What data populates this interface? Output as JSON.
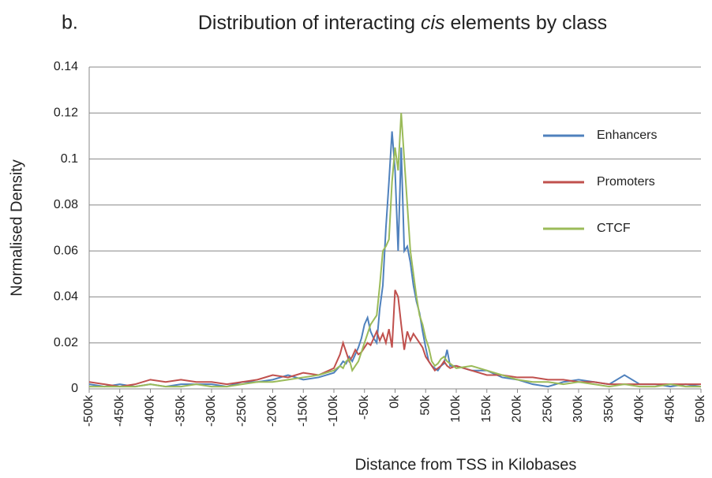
{
  "chart_data": {
    "type": "line",
    "panel": "b.",
    "title": {
      "before": "Distribution of interacting ",
      "italic": "cis",
      "after": " elements by class"
    },
    "xlabel": "Distance from TSS in Kilobases",
    "ylabel": "Normalised Density",
    "x": [
      -500,
      -475,
      -450,
      -425,
      -400,
      -375,
      -350,
      -325,
      -300,
      -275,
      -250,
      -225,
      -200,
      -175,
      -150,
      -125,
      -100,
      -90,
      -85,
      -80,
      -75,
      -70,
      -65,
      -60,
      -55,
      -50,
      -45,
      -40,
      -35,
      -30,
      -25,
      -20,
      -15,
      -10,
      -5,
      0,
      5,
      10,
      15,
      20,
      25,
      30,
      35,
      40,
      45,
      50,
      55,
      60,
      65,
      70,
      75,
      80,
      85,
      90,
      100,
      125,
      150,
      175,
      200,
      225,
      250,
      275,
      300,
      325,
      350,
      375,
      400,
      425,
      450,
      475,
      500
    ],
    "series": [
      {
        "name": "Enhancers",
        "color": "#4f81bd",
        "values": [
          0.002,
          0.001,
          0.002,
          0.001,
          0.002,
          0.001,
          0.002,
          0.002,
          0.002,
          0.001,
          0.003,
          0.003,
          0.004,
          0.006,
          0.004,
          0.005,
          0.007,
          0.01,
          0.012,
          0.011,
          0.014,
          0.012,
          0.015,
          0.018,
          0.022,
          0.028,
          0.031,
          0.025,
          0.022,
          0.02,
          0.035,
          0.045,
          0.07,
          0.09,
          0.112,
          0.095,
          0.06,
          0.105,
          0.06,
          0.062,
          0.055,
          0.045,
          0.038,
          0.033,
          0.025,
          0.018,
          0.012,
          0.01,
          0.009,
          0.008,
          0.01,
          0.011,
          0.017,
          0.01,
          0.01,
          0.008,
          0.008,
          0.005,
          0.004,
          0.002,
          0.001,
          0.003,
          0.004,
          0.003,
          0.002,
          0.006,
          0.002,
          0.002,
          0.001,
          0.002,
          0.001
        ]
      },
      {
        "name": "Promoters",
        "color": "#c0504d",
        "values": [
          0.003,
          0.002,
          0.001,
          0.002,
          0.004,
          0.003,
          0.004,
          0.003,
          0.003,
          0.002,
          0.003,
          0.004,
          0.006,
          0.005,
          0.007,
          0.006,
          0.009,
          0.015,
          0.02,
          0.016,
          0.012,
          0.014,
          0.017,
          0.015,
          0.016,
          0.018,
          0.02,
          0.019,
          0.022,
          0.025,
          0.021,
          0.024,
          0.02,
          0.026,
          0.018,
          0.043,
          0.04,
          0.028,
          0.017,
          0.025,
          0.021,
          0.024,
          0.022,
          0.02,
          0.018,
          0.014,
          0.012,
          0.01,
          0.008,
          0.009,
          0.01,
          0.012,
          0.01,
          0.009,
          0.01,
          0.008,
          0.006,
          0.006,
          0.005,
          0.005,
          0.004,
          0.004,
          0.003,
          0.003,
          0.002,
          0.002,
          0.002,
          0.002,
          0.002,
          0.002,
          0.002
        ]
      },
      {
        "name": "CTCF",
        "color": "#9bbb59",
        "values": [
          0.001,
          0.001,
          0.001,
          0.001,
          0.002,
          0.001,
          0.001,
          0.002,
          0.001,
          0.001,
          0.002,
          0.003,
          0.003,
          0.004,
          0.005,
          0.006,
          0.008,
          0.01,
          0.009,
          0.012,
          0.013,
          0.008,
          0.01,
          0.012,
          0.016,
          0.02,
          0.024,
          0.028,
          0.03,
          0.032,
          0.045,
          0.06,
          0.062,
          0.065,
          0.09,
          0.105,
          0.095,
          0.12,
          0.1,
          0.08,
          0.06,
          0.05,
          0.04,
          0.032,
          0.028,
          0.022,
          0.018,
          0.012,
          0.01,
          0.011,
          0.013,
          0.014,
          0.012,
          0.011,
          0.009,
          0.01,
          0.008,
          0.006,
          0.004,
          0.003,
          0.003,
          0.002,
          0.003,
          0.002,
          0.001,
          0.002,
          0.001,
          0.001,
          0.002,
          0.001,
          0.001
        ]
      }
    ],
    "xlim": [
      -500,
      500
    ],
    "xticks": [
      {
        "value": -500,
        "label": "-500k"
      },
      {
        "value": -450,
        "label": "-450k"
      },
      {
        "value": -400,
        "label": "-400k"
      },
      {
        "value": -350,
        "label": "-350k"
      },
      {
        "value": -300,
        "label": "-300k"
      },
      {
        "value": -250,
        "label": "-250k"
      },
      {
        "value": -200,
        "label": "-200k"
      },
      {
        "value": -150,
        "label": "-150k"
      },
      {
        "value": -100,
        "label": "-100k"
      },
      {
        "value": -50,
        "label": "-50k"
      },
      {
        "value": 0,
        "label": "0k"
      },
      {
        "value": 50,
        "label": "50k"
      },
      {
        "value": 100,
        "label": "100k"
      },
      {
        "value": 150,
        "label": "150k"
      },
      {
        "value": 200,
        "label": "200k"
      },
      {
        "value": 250,
        "label": "250k"
      },
      {
        "value": 300,
        "label": "300k"
      },
      {
        "value": 350,
        "label": "350k"
      },
      {
        "value": 400,
        "label": "400k"
      },
      {
        "value": 450,
        "label": "450k"
      },
      {
        "value": 500,
        "label": "500k"
      }
    ],
    "ylim": [
      0,
      0.14
    ],
    "yticks": [
      0,
      0.02,
      0.04,
      0.06,
      0.08,
      0.1,
      0.12,
      0.14
    ],
    "grid": true,
    "legend": "right"
  }
}
